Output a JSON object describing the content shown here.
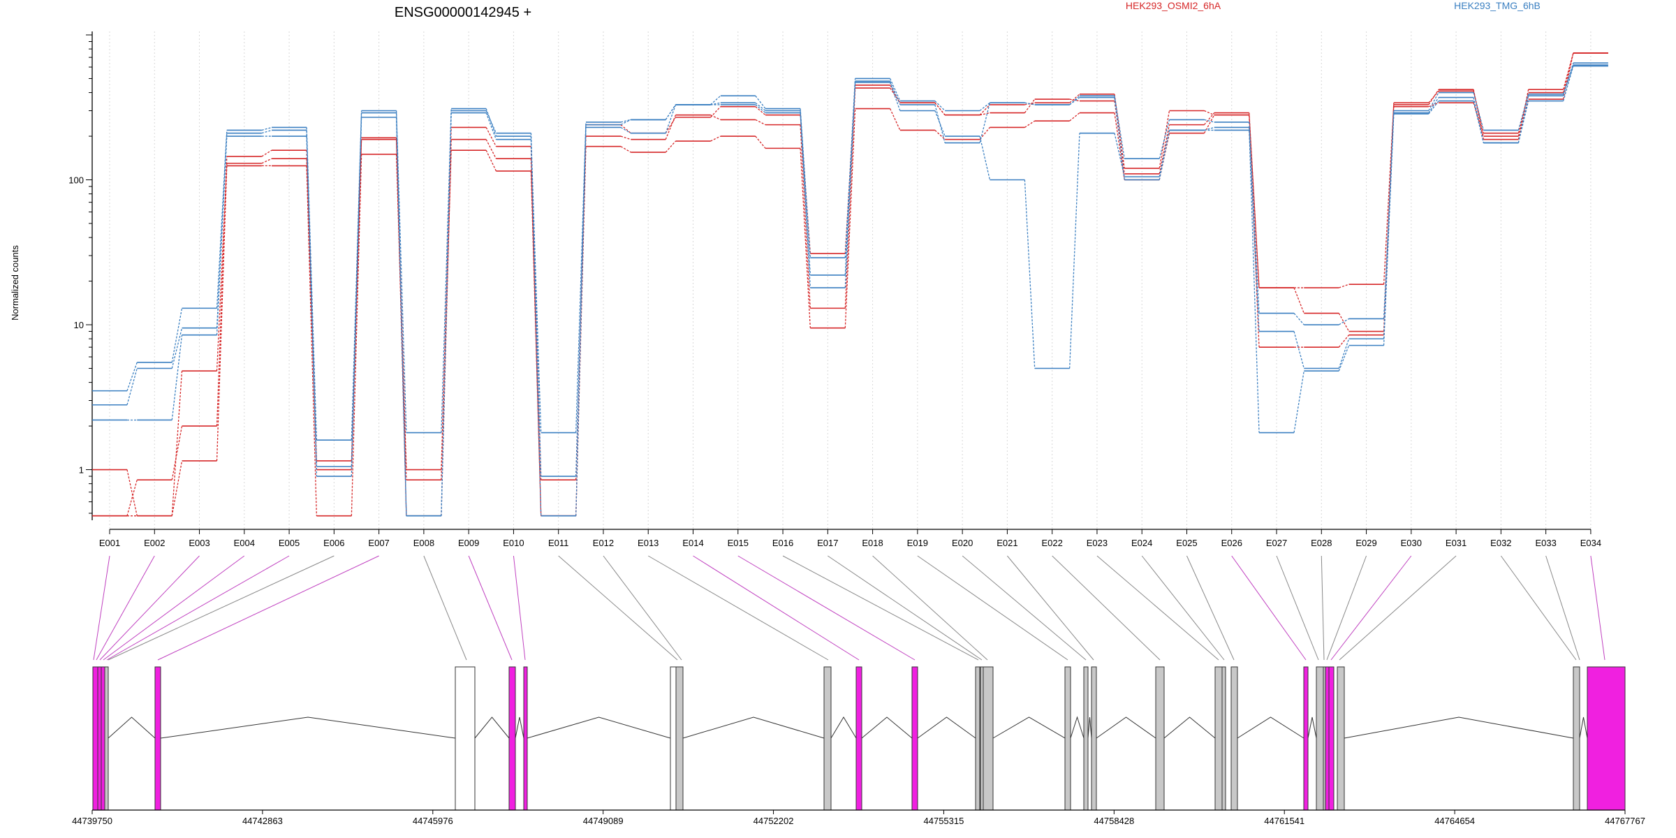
{
  "chart_data": {
    "type": "line",
    "title": "ENSG00000142945 +",
    "ylabel": "Normalized counts",
    "yscale": "log",
    "ylim": [
      0.5,
      1000
    ],
    "yticks": [
      1,
      10,
      100
    ],
    "ytick_labels": [
      "1",
      "10",
      "100"
    ],
    "grid": "vertical dotted lines at exons",
    "categories": [
      "E001",
      "E002",
      "E003",
      "E004",
      "E005",
      "E006",
      "E007",
      "E008",
      "E009",
      "E010",
      "E011",
      "E012",
      "E013",
      "E014",
      "E015",
      "E016",
      "E017",
      "E018",
      "E019",
      "E020",
      "E021",
      "E022",
      "E023",
      "E024",
      "E025",
      "E026",
      "E027",
      "E028",
      "E029",
      "E030",
      "E031",
      "E032",
      "E033",
      "E034"
    ],
    "legend": [
      {
        "label": "HEK293_OSMI2_6hA",
        "color": "#d62728"
      },
      {
        "label": "HEK293_TMG_6hB",
        "color": "#3a7fc1"
      }
    ],
    "series": [
      {
        "group": "HEK293_OSMI2_6hA",
        "color": "#d62728",
        "values": [
          1.0,
          0.48,
          1.15,
          125,
          125,
          0.48,
          150,
          0.85,
          160,
          115,
          0.48,
          170,
          155,
          185,
          200,
          165,
          9.5,
          310,
          220,
          190,
          230,
          255,
          290,
          100,
          210,
          280,
          7.0,
          7.0,
          8.5,
          320,
          340,
          200,
          360,
          750
        ]
      },
      {
        "group": "HEK293_OSMI2_6hA",
        "color": "#d62728",
        "values": [
          0.48,
          0.85,
          2.0,
          145,
          160,
          1.0,
          195,
          1.0,
          230,
          170,
          0.85,
          200,
          190,
          280,
          260,
          240,
          13,
          430,
          340,
          280,
          290,
          360,
          350,
          110,
          240,
          290,
          18,
          12,
          9.0,
          340,
          410,
          210,
          400,
          750
        ]
      },
      {
        "group": "HEK293_OSMI2_6hA",
        "color": "#d62728",
        "values": [
          0.48,
          0.48,
          4.8,
          130,
          140,
          1.15,
          190,
          0.48,
          190,
          140,
          0.48,
          240,
          210,
          270,
          320,
          280,
          31,
          450,
          340,
          280,
          330,
          340,
          390,
          120,
          300,
          280,
          18,
          18,
          19,
          330,
          420,
          190,
          420,
          750
        ]
      },
      {
        "group": "HEK293_TMG_6hB",
        "color": "#3a7fc1",
        "values": [
          3.5,
          5.5,
          13,
          220,
          230,
          1.6,
          300,
          1.8,
          310,
          200,
          1.8,
          250,
          260,
          330,
          380,
          310,
          29,
          500,
          350,
          300,
          340,
          330,
          380,
          140,
          260,
          250,
          12,
          10,
          11,
          300,
          400,
          220,
          390,
          640
        ]
      },
      {
        "group": "HEK293_TMG_6hB",
        "color": "#3a7fc1",
        "values": [
          2.8,
          5.0,
          9.5,
          210,
          220,
          1.05,
          290,
          0.48,
          300,
          210,
          0.9,
          240,
          260,
          330,
          340,
          300,
          22,
          480,
          330,
          180,
          340,
          330,
          370,
          100,
          220,
          230,
          1.8,
          4.8,
          7.2,
          290,
          370,
          180,
          380,
          620
        ]
      },
      {
        "group": "HEK293_TMG_6hB",
        "color": "#3a7fc1",
        "values": [
          2.2,
          2.2,
          8.5,
          200,
          200,
          0.9,
          270,
          0.48,
          290,
          190,
          0.48,
          230,
          210,
          330,
          330,
          290,
          18,
          470,
          300,
          200,
          100,
          5.0,
          210,
          105,
          220,
          220,
          9.0,
          5.0,
          8.0,
          285,
          350,
          180,
          350,
          610
        ]
      }
    ]
  },
  "gene_model": {
    "genome_coords": [
      "44739750",
      "44742863",
      "44745976",
      "44749089",
      "44752202",
      "44755315",
      "44758428",
      "44761541",
      "44764654",
      "44767767"
    ]
  },
  "colors": {
    "osmi": "#d62728",
    "tmg": "#3a7fc1",
    "highlight_exon": "#f020e0",
    "plain_exon": "#c8c8c8",
    "connector_plain": "#888888",
    "connector_highlight": "#c040c0"
  }
}
